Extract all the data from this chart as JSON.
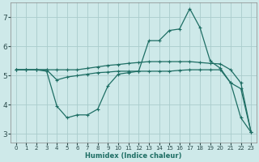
{
  "xlabel": "Humidex (Indice chaleur)",
  "background_color": "#cee9e9",
  "grid_color": "#aacccc",
  "line_color": "#1e6e64",
  "xlim": [
    -0.5,
    23.5
  ],
  "ylim": [
    2.7,
    7.5
  ],
  "xticks": [
    0,
    1,
    2,
    3,
    4,
    5,
    6,
    7,
    8,
    9,
    10,
    11,
    12,
    13,
    14,
    15,
    16,
    17,
    18,
    19,
    20,
    21,
    22,
    23
  ],
  "yticks": [
    3,
    4,
    5,
    6,
    7
  ],
  "line1_x": [
    0,
    1,
    2,
    3,
    4,
    5,
    6,
    7,
    8,
    9,
    10,
    11,
    12,
    13,
    14,
    15,
    16,
    17,
    18,
    19,
    20,
    21,
    22,
    23
  ],
  "line1_y": [
    5.2,
    5.2,
    5.2,
    5.2,
    5.2,
    5.2,
    5.2,
    5.25,
    5.3,
    5.35,
    5.38,
    5.42,
    5.45,
    5.48,
    5.48,
    5.48,
    5.48,
    5.48,
    5.45,
    5.42,
    5.4,
    5.2,
    4.75,
    3.05
  ],
  "line2_x": [
    0,
    1,
    2,
    3,
    4,
    5,
    6,
    7,
    8,
    9,
    10,
    11,
    12,
    13,
    14,
    15,
    16,
    17,
    18,
    19,
    20,
    21,
    22,
    23
  ],
  "line2_y": [
    5.2,
    5.2,
    5.2,
    5.15,
    3.95,
    3.55,
    3.65,
    3.65,
    3.85,
    4.65,
    5.05,
    5.1,
    5.15,
    6.2,
    6.2,
    6.55,
    6.6,
    7.3,
    6.65,
    5.5,
    5.25,
    4.75,
    3.55,
    3.05
  ],
  "line3_x": [
    0,
    1,
    2,
    3,
    4,
    5,
    6,
    7,
    8,
    9,
    10,
    11,
    12,
    13,
    14,
    15,
    16,
    17,
    18,
    19,
    20,
    21,
    22,
    23
  ],
  "line3_y": [
    5.2,
    5.2,
    5.2,
    5.2,
    4.85,
    4.95,
    5.0,
    5.05,
    5.1,
    5.12,
    5.15,
    5.15,
    5.15,
    5.15,
    5.15,
    5.15,
    5.18,
    5.2,
    5.2,
    5.2,
    5.2,
    4.75,
    4.55,
    3.05
  ]
}
